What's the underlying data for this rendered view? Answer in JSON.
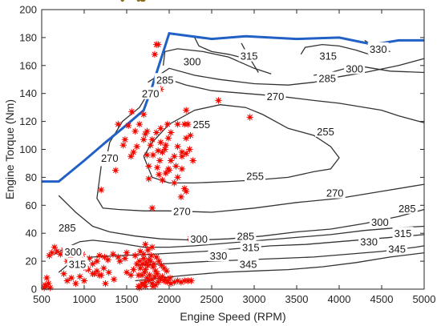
{
  "chart_data": {
    "type": "contour",
    "xlabel": "Engine Speed (RPM)",
    "ylabel": "Engine Torque (Nm)",
    "xlim": [
      500,
      5000
    ],
    "ylim": [
      0,
      200
    ],
    "x_ticks": [
      "500",
      "1000",
      "1500",
      "2000",
      "2500",
      "3000",
      "3500",
      "4000",
      "4500",
      "5000"
    ],
    "y_ticks": [
      "0",
      "20",
      "40",
      "60",
      "80",
      "100",
      "120",
      "140",
      "160",
      "180",
      "200"
    ],
    "grid": false,
    "colors": {
      "max_torque_curve": "#2160c4",
      "operating_points": "#ff0000",
      "operating_points_fill": "#8b6d1e",
      "contour": "#333333"
    },
    "max_torque_curve": {
      "x": [
        500,
        700,
        1000,
        1250,
        1450,
        1700,
        1800,
        2000,
        2500,
        2900,
        3500,
        4000,
        4400,
        4700,
        5000
      ],
      "y": [
        77,
        77,
        92,
        105,
        115,
        128,
        145,
        183,
        179,
        181,
        179,
        180,
        175,
        178,
        178
      ]
    },
    "contours": [
      {
        "level": 255,
        "x": [
          1700,
          1800,
          2000,
          2300,
          2600,
          2900,
          3100,
          3400,
          3700,
          3900,
          4000,
          3900,
          3700,
          3400,
          3000,
          2700,
          2300,
          2000,
          1800,
          1700
        ],
        "y": [
          95,
          105,
          118,
          128,
          132,
          130,
          125,
          115,
          110,
          102,
          94,
          86,
          84,
          80,
          78,
          77,
          76,
          76,
          80,
          95
        ]
      },
      {
        "level": 270,
        "x": [
          1250,
          1300,
          1450,
          1650,
          1800
        ],
        "y": [
          90,
          105,
          120,
          130,
          145
        ]
      },
      {
        "level": 270,
        "x": [
          1200,
          1150,
          1220,
          1400,
          1700,
          2000,
          2500,
          3000,
          3500,
          4000,
          4500,
          5000
        ],
        "y": [
          88,
          65,
          58,
          57,
          56,
          56,
          55,
          58,
          62,
          65,
          70,
          75
        ]
      },
      {
        "level": 270,
        "x": [
          2000,
          2200,
          2500,
          2900,
          3300,
          3700,
          4000,
          4200,
          4500,
          4700,
          5000
        ],
        "y": [
          150,
          146,
          142,
          140,
          138,
          135,
          133,
          131,
          128,
          124,
          119
        ]
      },
      {
        "level": 285,
        "x": [
          700,
          900,
          1100,
          1300,
          1600,
          1900,
          2300,
          2700,
          3100,
          3500,
          3900,
          4300,
          4700,
          5000
        ],
        "y": [
          67,
          55,
          45,
          41,
          38,
          36,
          35,
          36,
          38,
          41,
          43,
          47,
          52,
          57
        ]
      },
      {
        "level": 285,
        "x": [
          1750,
          1900,
          2000,
          2300,
          2600,
          3000,
          3400,
          3700,
          4000,
          4300,
          4700,
          5000
        ],
        "y": [
          148,
          154,
          158,
          153,
          150,
          147,
          146,
          148,
          152,
          155,
          160,
          165
        ]
      },
      {
        "level": 300,
        "x": [
          650,
          800,
          950,
          1100,
          1400,
          1700,
          2000,
          2300,
          2700,
          3100,
          3500,
          3900,
          4300,
          4700,
          5000
        ],
        "y": [
          25,
          30,
          34,
          35,
          33,
          30,
          30,
          31,
          33,
          35,
          37,
          39,
          42,
          44,
          45
        ]
      },
      {
        "level": 300,
        "x": [
          1930,
          1950,
          2100,
          2400,
          2700,
          3000,
          3200
        ],
        "y": [
          160,
          170,
          172,
          170,
          166,
          158,
          154
        ]
      },
      {
        "level": 300,
        "x": [
          3700,
          3900,
          4200,
          4400,
          4600,
          5000
        ],
        "y": [
          153,
          155,
          160,
          158,
          156,
          155
        ]
      },
      {
        "level": 315,
        "x": [
          700,
          800,
          900,
          1100,
          1400,
          1800,
          2100,
          2400,
          2800,
          3200,
          3600,
          4000,
          4400,
          4800,
          5000
        ],
        "y": [
          12,
          17,
          21,
          23,
          24,
          25,
          26,
          27,
          29,
          31,
          32,
          34,
          36,
          38,
          39
        ]
      },
      {
        "level": 315,
        "x": [
          2850,
          2920,
          3000,
          3050
        ],
        "y": [
          176,
          168,
          160,
          155
        ]
      },
      {
        "level": 315,
        "x": [
          3550,
          3600,
          3800,
          4000,
          4200,
          4350
        ],
        "y": [
          168,
          173,
          175,
          174,
          171,
          168
        ]
      },
      {
        "level": 330,
        "x": [
          1600,
          1900,
          2200,
          2500,
          2900,
          3300,
          3700,
          4100,
          4500,
          4900,
          5000
        ],
        "y": [
          17,
          18,
          19,
          20,
          21,
          22,
          23,
          25,
          27,
          30,
          31
        ]
      },
      {
        "level": 330,
        "x": [
          4300,
          4450,
          4600
        ],
        "y": [
          178,
          172,
          170
        ]
      },
      {
        "level": 330,
        "x": [
          2300,
          2350,
          2500,
          2700,
          2900
        ],
        "y": [
          180,
          174,
          170,
          168,
          165
        ]
      },
      {
        "level": 345,
        "x": [
          1600,
          1900,
          2200,
          2600,
          3000,
          3400,
          3800,
          4200,
          4600,
          5000
        ],
        "y": [
          6,
          8,
          10,
          12,
          13,
          14,
          16,
          19,
          23,
          26
        ]
      }
    ],
    "contour_labels": [
      {
        "text": "255",
        "x": 2380,
        "y": 118
      },
      {
        "text": "255",
        "x": 3840,
        "y": 113
      },
      {
        "text": "255",
        "x": 3010,
        "y": 81
      },
      {
        "text": "270",
        "x": 1780,
        "y": 140
      },
      {
        "text": "270",
        "x": 1300,
        "y": 94
      },
      {
        "text": "270",
        "x": 2150,
        "y": 56
      },
      {
        "text": "270",
        "x": 3950,
        "y": 69
      },
      {
        "text": "270",
        "x": 3250,
        "y": 138
      },
      {
        "text": "285",
        "x": 1950,
        "y": 150
      },
      {
        "text": "285",
        "x": 3860,
        "y": 151
      },
      {
        "text": "285",
        "x": 2900,
        "y": 38
      },
      {
        "text": "285",
        "x": 4800,
        "y": 58
      },
      {
        "text": "285",
        "x": 800,
        "y": 44
      },
      {
        "text": "300",
        "x": 2270,
        "y": 163
      },
      {
        "text": "300",
        "x": 4180,
        "y": 158
      },
      {
        "text": "300",
        "x": 2350,
        "y": 36
      },
      {
        "text": "300",
        "x": 4480,
        "y": 48
      },
      {
        "text": "300",
        "x": 870,
        "y": 27
      },
      {
        "text": "315",
        "x": 2940,
        "y": 167
      },
      {
        "text": "315",
        "x": 3870,
        "y": 167
      },
      {
        "text": "315",
        "x": 2960,
        "y": 30
      },
      {
        "text": "315",
        "x": 4750,
        "y": 40
      },
      {
        "text": "315",
        "x": 920,
        "y": 18
      },
      {
        "text": "330",
        "x": 4460,
        "y": 172
      },
      {
        "text": "330",
        "x": 2580,
        "y": 24
      },
      {
        "text": "330",
        "x": 4350,
        "y": 34
      },
      {
        "text": "345",
        "x": 2930,
        "y": 18
      },
      {
        "text": "345",
        "x": 4680,
        "y": 29
      }
    ],
    "operating_points": {
      "x": [
        1850,
        1870,
        1830,
        1900,
        1980,
        2020,
        2100,
        2180,
        2200,
        2100,
        2150,
        1990,
        1960,
        1920,
        1890,
        1860,
        1880,
        1920,
        1960,
        1990,
        2020,
        2060,
        2000,
        2080,
        2150,
        2200,
        1950,
        1900,
        1850,
        1800,
        1780,
        1810,
        1870,
        1700,
        1740,
        1650,
        1600,
        1620,
        1580,
        1550,
        1400,
        1520,
        1370,
        1200,
        1460,
        1480,
        1560,
        1700,
        1720,
        1740,
        1760,
        2200,
        2220,
        2250,
        2240,
        2280,
        2150,
        2100,
        2060,
        2180,
        2140,
        2200,
        2250,
        2580,
        2950,
        1760,
        1900,
        1800,
        1720,
        1810,
        1640,
        1700,
        1680,
        1650,
        1720,
        1760,
        1800,
        1840,
        1870,
        1900,
        1940,
        1980,
        2020,
        2060,
        2100,
        2140,
        2180,
        2220,
        2260,
        1680,
        1710,
        1740,
        1770,
        1800,
        1830,
        1860,
        1890,
        1920,
        1950,
        1980,
        2010,
        1660,
        1690,
        1720,
        1750,
        1780,
        1810,
        1840,
        1700,
        1730,
        1760,
        1790,
        1820,
        1850,
        1880,
        1910,
        1940,
        1970,
        1660,
        1700,
        1800,
        1750,
        1600,
        1720,
        1650,
        1640,
        1500,
        1480,
        1420,
        1400,
        1340,
        1280,
        1240,
        1180,
        1150,
        1100,
        1060,
        1020,
        980,
        940,
        900,
        870,
        840,
        800,
        760,
        720,
        680,
        650,
        620,
        590,
        560,
        540,
        530,
        550,
        580,
        600,
        1000,
        1050,
        1120,
        1180,
        1230,
        1290,
        1350,
        1250,
        1200,
        1150,
        1100,
        1000,
        950,
        900,
        850,
        800,
        760,
        1550,
        1620,
        1580,
        1500,
        1450,
        1680,
        1700,
        1640
      ],
      "y": [
        175,
        175,
        168,
        143,
        118,
        112,
        118,
        118,
        108,
        102,
        98,
        108,
        103,
        98,
        92,
        87,
        82,
        78,
        83,
        86,
        92,
        95,
        85,
        88,
        95,
        97,
        100,
        105,
        112,
        107,
        103,
        96,
        99,
        107,
        113,
        118,
        113,
        102,
        98,
        95,
        118,
        117,
        85,
        71,
        103,
        107,
        127,
        125,
        111,
        96,
        79,
        128,
        118,
        110,
        100,
        92,
        86,
        80,
        76,
        72,
        66,
        70,
        36,
        135,
        123,
        88,
        115,
        58,
        2,
        2,
        2,
        3,
        4,
        1,
        5,
        6,
        4,
        3,
        5,
        7,
        6,
        5,
        4,
        5,
        6,
        5,
        6,
        6,
        6,
        10,
        12,
        8,
        10,
        7,
        9,
        11,
        8,
        9,
        7,
        6,
        8,
        15,
        18,
        14,
        17,
        20,
        16,
        13,
        22,
        19,
        21,
        24,
        18,
        23,
        20,
        17,
        15,
        13,
        27,
        25,
        30,
        28,
        24,
        32,
        20,
        10,
        26,
        22,
        20,
        23,
        25,
        21,
        23,
        24,
        20,
        18,
        22,
        15,
        25,
        20,
        28,
        26,
        24,
        20,
        28,
        25,
        27,
        30,
        26,
        24,
        8,
        3,
        1,
        2,
        4,
        1,
        17,
        14,
        11,
        10,
        15,
        12,
        7,
        4,
        10,
        13,
        11,
        6,
        9,
        4,
        8,
        6,
        11,
        10,
        18,
        14,
        12
      ]
    }
  }
}
